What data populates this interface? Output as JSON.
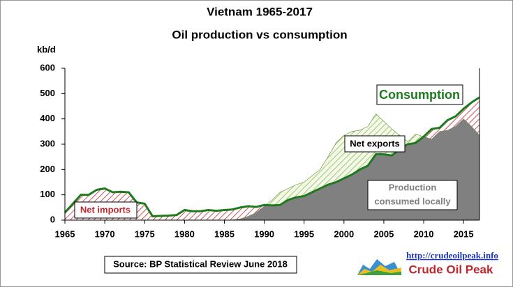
{
  "chart_data": {
    "type": "area",
    "title": [
      "Vietnam 1965-2017",
      "Oil production vs consumption"
    ],
    "y_label": "kb/d",
    "x": [
      1965,
      1966,
      1967,
      1968,
      1969,
      1970,
      1971,
      1972,
      1973,
      1974,
      1975,
      1976,
      1977,
      1978,
      1979,
      1980,
      1981,
      1982,
      1983,
      1984,
      1985,
      1986,
      1987,
      1988,
      1989,
      1990,
      1991,
      1992,
      1993,
      1994,
      1995,
      1996,
      1997,
      1998,
      1999,
      2000,
      2001,
      2002,
      2003,
      2004,
      2005,
      2006,
      2007,
      2008,
      2009,
      2010,
      2011,
      2012,
      2013,
      2014,
      2015,
      2016,
      2017
    ],
    "series": [
      {
        "name": "Consumption",
        "color": "#1e7a1e",
        "values": [
          30,
          65,
          100,
          100,
          120,
          125,
          110,
          112,
          110,
          70,
          65,
          15,
          17,
          18,
          20,
          40,
          35,
          35,
          40,
          37,
          40,
          42,
          50,
          55,
          52,
          60,
          58,
          60,
          80,
          90,
          95,
          110,
          125,
          140,
          150,
          165,
          180,
          200,
          215,
          260,
          260,
          255,
          280,
          300,
          305,
          330,
          360,
          365,
          395,
          410,
          440,
          465,
          485
        ]
      },
      {
        "name": "Production",
        "color": "#808080",
        "values": [
          0,
          0,
          0,
          0,
          0,
          0,
          0,
          0,
          0,
          0,
          0,
          0,
          0,
          0,
          0,
          0,
          0,
          0,
          0,
          0,
          0,
          1,
          5,
          15,
          30,
          55,
          80,
          110,
          125,
          140,
          150,
          175,
          200,
          250,
          305,
          335,
          350,
          355,
          370,
          420,
          390,
          360,
          335,
          310,
          340,
          330,
          320,
          350,
          355,
          370,
          400,
          370,
          335
        ]
      }
    ],
    "xlim": [
      1965,
      2017
    ],
    "xticks": [
      1965,
      1970,
      1975,
      1980,
      1985,
      1990,
      1995,
      2000,
      2005,
      2010,
      2015
    ],
    "ylim": [
      0,
      600
    ],
    "yticks": [
      0,
      100,
      200,
      300,
      400,
      500,
      600
    ],
    "annotations": [
      "Net exports",
      "Net imports",
      "consumed locally"
    ],
    "source": "Source: BP Statistical Review  June 2018",
    "url": "http://crudeoilpeak.info",
    "logo": "Crude Oil Peak"
  }
}
